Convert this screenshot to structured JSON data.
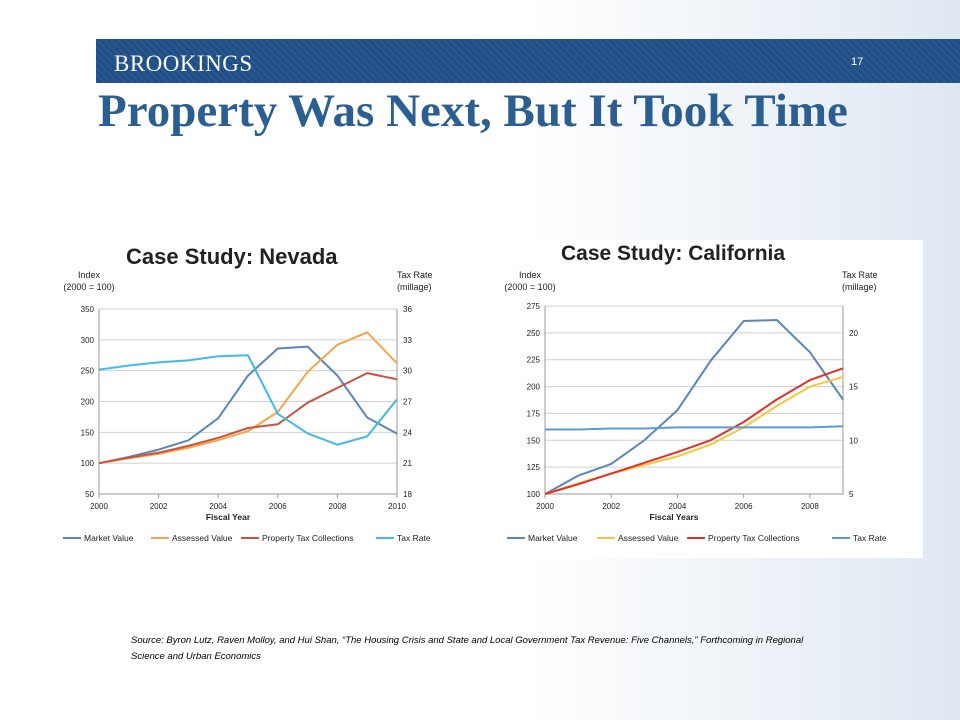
{
  "header": {
    "brand": "BROOKINGS",
    "page_number": "17",
    "title": "Property Was Next, But It Took Time"
  },
  "source_note": "Source: Byron Lutz, Raven Molloy, and Hui Shan, “The Housing Crisis and State and Local Government Tax Revenue: Five Channels,” Forthcoming in Regional Science and Urban Economics",
  "chart_data": [
    {
      "type": "line",
      "title": "Case Study: Nevada",
      "xlabel": "Fiscal Year",
      "ylabel": "Index (2000 = 100)",
      "ylabel_lines": [
        "Index",
        "(2000 = 100)"
      ],
      "y2label_lines": [
        "Tax Rate",
        "(millage)"
      ],
      "x": [
        2000,
        2001,
        2002,
        2003,
        2004,
        2005,
        2006,
        2007,
        2008,
        2009,
        2010
      ],
      "xticks": [
        "2000",
        "2002",
        "2004",
        "2006",
        "2008",
        "2010"
      ],
      "ylim": [
        50,
        350
      ],
      "yticks": [
        50,
        100,
        150,
        200,
        250,
        300,
        350
      ],
      "y2lim": [
        18,
        36
      ],
      "y2ticks": [
        18,
        21,
        24,
        27,
        30,
        33,
        36
      ],
      "series": [
        {
          "name": "Market Value",
          "color": "#5b86b8",
          "axis": "left",
          "values": [
            100,
            110,
            122,
            137,
            173,
            242,
            286,
            289,
            242,
            174,
            148
          ]
        },
        {
          "name": "Assessed Value",
          "color": "#f4a64a",
          "axis": "left",
          "values": [
            100,
            108,
            115,
            125,
            137,
            152,
            183,
            248,
            292,
            312,
            262
          ]
        },
        {
          "name": "Property Tax Collections",
          "color": "#c9533f",
          "axis": "left",
          "values": [
            100,
            109,
            117,
            128,
            141,
            157,
            163,
            198,
            222,
            246,
            236
          ]
        },
        {
          "name": "Tax Rate",
          "color": "#42b9e6",
          "axis": "right",
          "values": [
            30.1,
            30.5,
            30.8,
            31.0,
            31.4,
            31.5,
            25.8,
            23.9,
            22.8,
            23.6,
            27.2
          ]
        }
      ],
      "legend": "bottom"
    },
    {
      "type": "line",
      "title": "Case Study: California",
      "xlabel": "Fiscal Years",
      "ylabel": "Index (2000 = 100)",
      "ylabel_lines": [
        "Index",
        "(2000 = 100)"
      ],
      "y2label_lines": [
        "Tax Rate",
        "(millage)"
      ],
      "x": [
        2000,
        2001,
        2002,
        2003,
        2004,
        2005,
        2006,
        2007,
        2008,
        2009
      ],
      "xticks": [
        "2000",
        "2002",
        "2004",
        "2006",
        "2008"
      ],
      "ylim": [
        100,
        275
      ],
      "yticks": [
        100,
        125,
        150,
        175,
        200,
        225,
        250,
        275
      ],
      "y2lim": [
        5,
        22.5
      ],
      "y2ticks": [
        5,
        10,
        15,
        20
      ],
      "series": [
        {
          "name": "Market Value",
          "color": "#5b86b8",
          "axis": "left",
          "values": [
            100,
            117,
            128,
            150,
            178,
            224,
            261,
            262,
            232,
            188
          ]
        },
        {
          "name": "Assessed Value",
          "color": "#f5c83a",
          "axis": "left",
          "values": [
            100,
            110,
            119,
            127,
            135,
            146,
            162,
            182,
            200,
            209
          ]
        },
        {
          "name": "Property Tax Collections",
          "color": "#e0302a",
          "axis": "left",
          "values": [
            100,
            109,
            119,
            129,
            139,
            150,
            167,
            188,
            206,
            217
          ]
        },
        {
          "name": "Tax Rate",
          "color": "#5b9bd5",
          "axis": "right",
          "values": [
            11.0,
            11.0,
            11.1,
            11.1,
            11.2,
            11.2,
            11.2,
            11.2,
            11.2,
            11.3
          ]
        }
      ],
      "legend": "bottom"
    }
  ]
}
